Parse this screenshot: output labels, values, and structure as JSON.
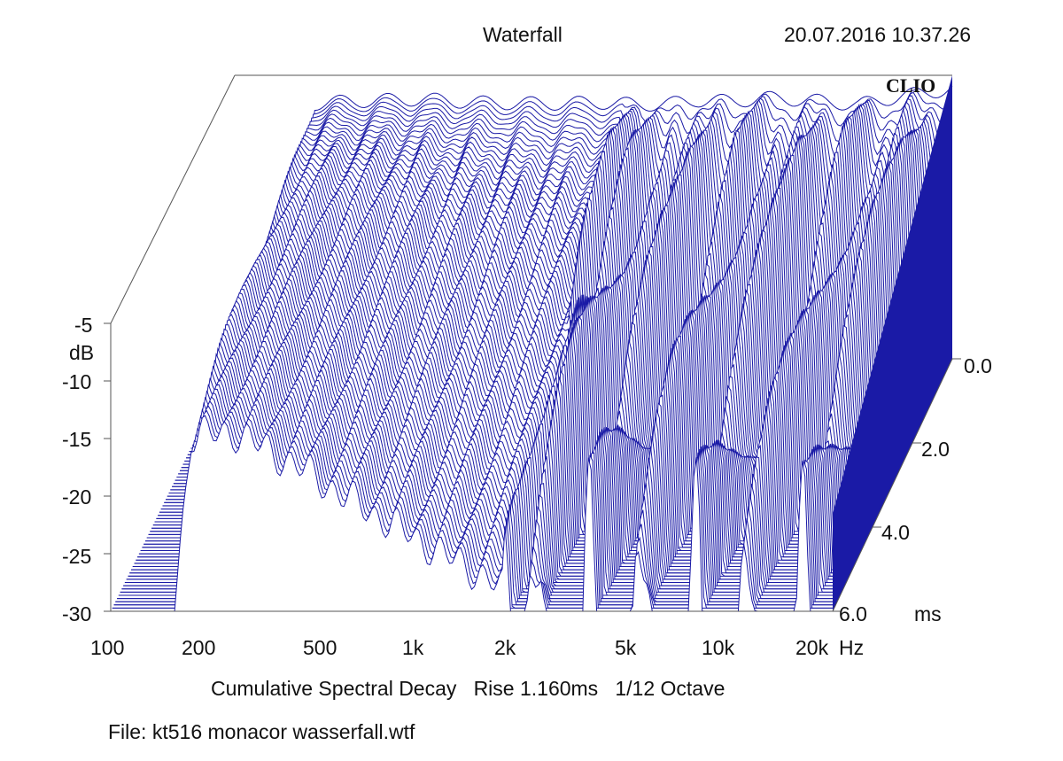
{
  "chart_data": {
    "type": "waterfall",
    "title": "Waterfall",
    "timestamp": "20.07.2016 10.37.26",
    "brand": "CLIO",
    "subtitle": "Cumulative Spectral Decay   Rise 1.160ms   1/12 Octave",
    "file_label": "File: kt516 monacor wasserfall.wtf",
    "y_axis": {
      "unit": "dB",
      "range": [
        -30,
        -5
      ],
      "ticks": [
        "-5",
        "-10",
        "-15",
        "-20",
        "-25",
        "-30"
      ]
    },
    "x_axis": {
      "unit": "Hz",
      "scale": "log",
      "range": [
        100,
        20000
      ],
      "ticks": [
        "100",
        "200",
        "500",
        "1k",
        "2k",
        "5k",
        "10k",
        "20k"
      ]
    },
    "time_axis": {
      "unit": "ms",
      "range": [
        0,
        6
      ],
      "ticks": [
        "0.0",
        "2.0",
        "4.0",
        "6.0"
      ]
    },
    "slices": 80,
    "initial_response": {
      "freq_hz": [
        100,
        150,
        180,
        230,
        300,
        400,
        600,
        1000,
        1500,
        2000,
        2500,
        3000,
        4000,
        5000,
        7000,
        10000,
        14000,
        20000
      ],
      "db": [
        -30,
        -30,
        -7.5,
        -7.3,
        -7.2,
        -7.1,
        -7.4,
        -7.5,
        -7.4,
        -7.6,
        -7.5,
        -7.2,
        -7.3,
        -7,
        -7.2,
        -7.6,
        -6.8,
        -6.2
      ]
    },
    "color": "#1a1aa6"
  }
}
